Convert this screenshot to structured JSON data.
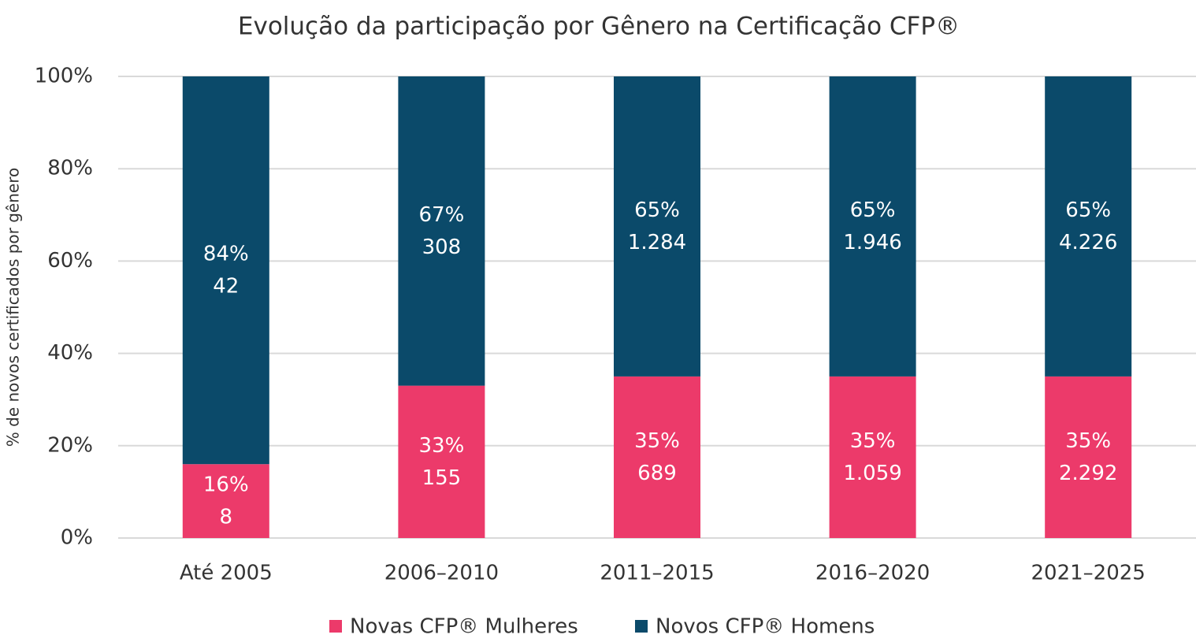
{
  "chart_data": {
    "type": "stacked_bar",
    "title": "Evolução da participação por Gênero na Certificação CFP®",
    "y_label": "% de novos certificados por gênero",
    "categories": [
      "Até 2005",
      "2006–2010",
      "2011–2015",
      "2016–2020",
      "2021–2025"
    ],
    "series": [
      {
        "name": "Novas CFP® Mulheres",
        "color": "#ec3a6a",
        "values": [
          16,
          33,
          35,
          35,
          35
        ],
        "value_labels": [
          "16%",
          "33%",
          "35%",
          "35%",
          "35%"
        ],
        "counts": [
          8,
          155,
          689,
          {
            "value": 1059,
            "label": "1.059"
          },
          {
            "value": 2292,
            "label": "2.292"
          }
        ]
      },
      {
        "name": "Novos CFP® Homens",
        "color": "#0b4a6a",
        "values": [
          84,
          67,
          65,
          65,
          65
        ],
        "value_labels": [
          "84%",
          "67%",
          "65%",
          "65%",
          "65%"
        ],
        "counts": [
          42,
          308,
          {
            "value": 1284,
            "label": "1.284"
          },
          {
            "value": 1946,
            "label": "1.946"
          },
          {
            "value": 4226,
            "label": "4.226"
          }
        ]
      }
    ],
    "ylim": [
      0,
      100
    ],
    "yticks": [
      {
        "value": 0,
        "label": "0%"
      },
      {
        "value": 20,
        "label": "20%"
      },
      {
        "value": 40,
        "label": "40%"
      },
      {
        "value": 60,
        "label": "60%"
      },
      {
        "value": 80,
        "label": "80%"
      },
      {
        "value": 100,
        "label": "100%"
      }
    ],
    "grid": true,
    "legend": "bottom"
  }
}
